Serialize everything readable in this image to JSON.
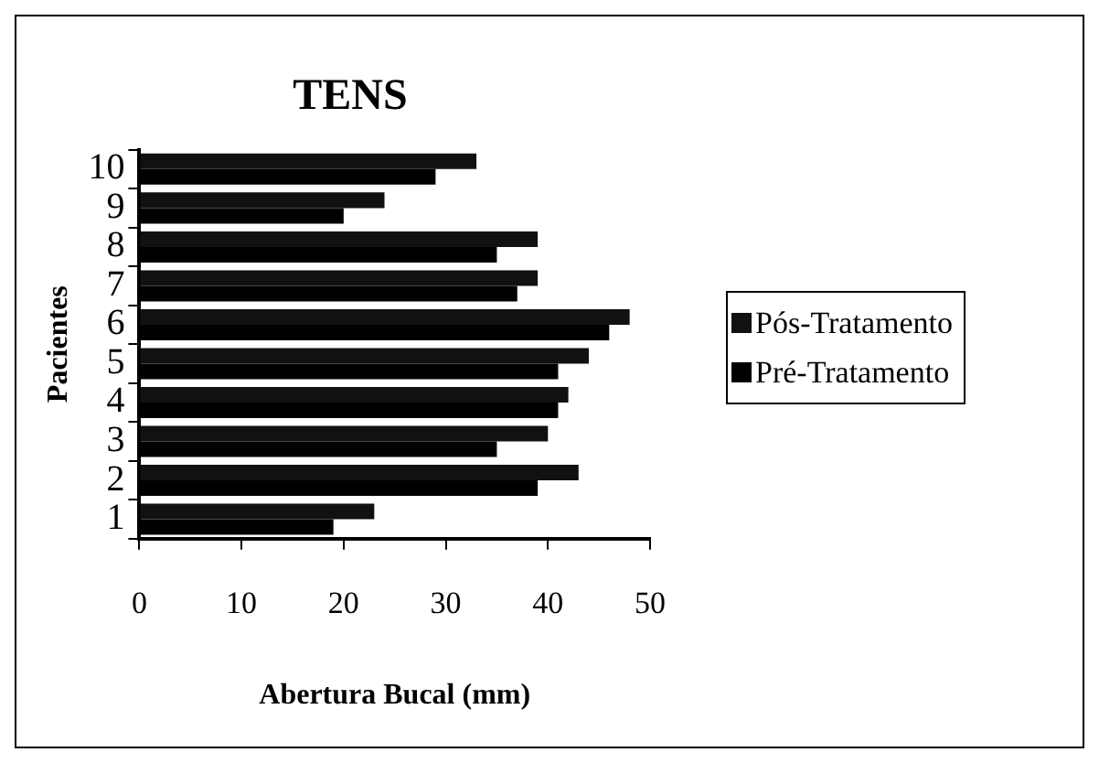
{
  "chart_data": {
    "type": "bar",
    "orientation": "horizontal",
    "title": "TENS",
    "xlabel": "Abertura Bucal (mm)",
    "ylabel": "Pacientes",
    "categories": [
      "10",
      "9",
      "8",
      "7",
      "6",
      "5",
      "4",
      "3",
      "2",
      "1"
    ],
    "series": [
      {
        "name": "Pós-Tratamento",
        "color": "#111111",
        "values": [
          33,
          24,
          39,
          39,
          48,
          44,
          42,
          40,
          43,
          23
        ]
      },
      {
        "name": "Pré-Tratamento",
        "color": "#000000",
        "values": [
          29,
          20,
          35,
          37,
          46,
          41,
          41,
          35,
          39,
          19
        ]
      }
    ],
    "xlim": [
      0,
      50
    ],
    "xticks": [
      0,
      10,
      20,
      30,
      40,
      50
    ],
    "grid": false,
    "legend": "right"
  }
}
